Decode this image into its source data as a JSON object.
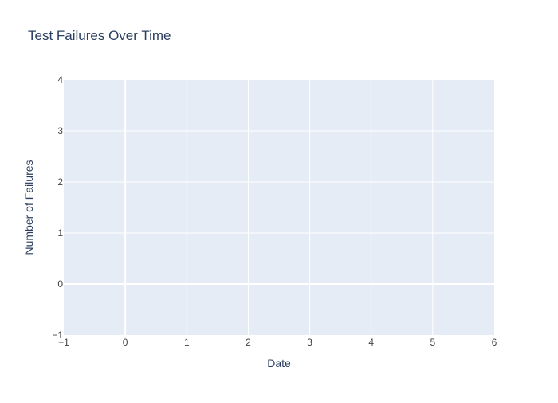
{
  "chart_data": {
    "type": "line",
    "title": "Test Failures Over Time",
    "xlabel": "Date",
    "ylabel": "Number of Failures",
    "xlim": [
      -1,
      6
    ],
    "ylim": [
      -1,
      4
    ],
    "x_ticks": [
      "−1",
      "0",
      "1",
      "2",
      "3",
      "4",
      "5",
      "6"
    ],
    "y_ticks": [
      "−1",
      "0",
      "1",
      "2",
      "3",
      "4"
    ],
    "series": [],
    "grid": true,
    "legend": "none"
  },
  "colors": {
    "plot_background": "#e5ecf6",
    "grid": "#ffffff",
    "text": "#2a3f5f",
    "tick_text": "#444444"
  }
}
